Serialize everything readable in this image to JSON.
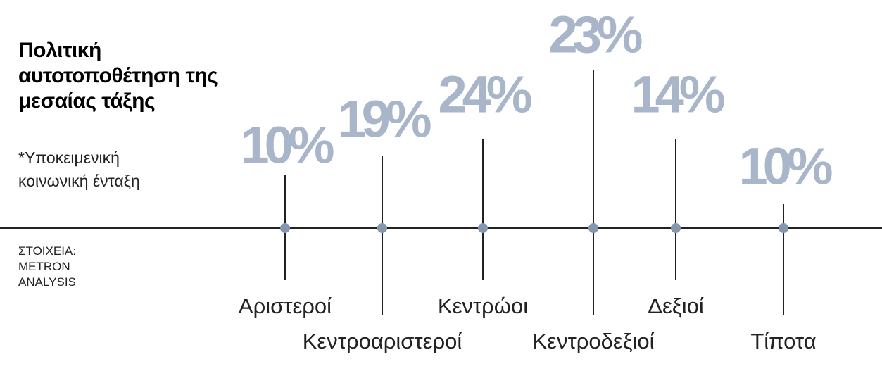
{
  "chart_data": {
    "type": "timeline",
    "title": "Πολιτική αυτοτοποθέτηση της μεσαίας τάξης",
    "subtitle": "*Υποκειμενική κοινωνική ένταξη",
    "source": "ΣΤΟΙΧΕΙΑ: METRON ANALYSIS",
    "categories": [
      "Αριστεροί",
      "Κεντροαριστεροί",
      "Κεντρώοι",
      "Κεντροδεξιοί",
      "Δεξιοί",
      "Τίποτα"
    ],
    "values": [
      10,
      19,
      24,
      23,
      14,
      10
    ],
    "value_labels": [
      "10%",
      "19%",
      "24%",
      "23%",
      "14%",
      "10%"
    ],
    "color": "#8596b0",
    "label_color": "#a9b5c9"
  }
}
